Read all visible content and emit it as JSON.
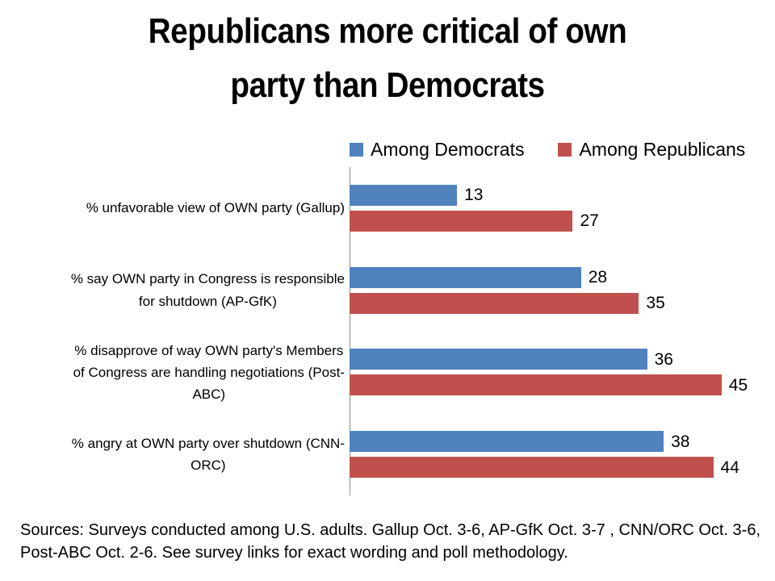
{
  "title": "Republicans more critical of own\nparty than Democrats",
  "legend": [
    {
      "label": "Among Democrats",
      "color": "#4F81BD"
    },
    {
      "label": "Among Republicans",
      "color": "#C0504D"
    }
  ],
  "chart_data": {
    "type": "bar",
    "orientation": "horizontal",
    "title": "Republicans more critical of own party than Democrats",
    "categories": [
      "% unfavorable view of OWN party (Gallup)",
      "% say OWN party in Congress is responsible\nfor shutdown (AP-GfK)",
      "% disapprove of way OWN party's Members\nof Congress are handling negotiations (Post-\nABC)",
      "% angry at OWN party over shutdown (CNN-\nORC)"
    ],
    "series": [
      {
        "name": "Among Democrats",
        "color": "#4F81BD",
        "values": [
          13,
          28,
          36,
          38
        ]
      },
      {
        "name": "Among Republicans",
        "color": "#C0504D",
        "values": [
          27,
          35,
          45,
          44
        ]
      }
    ],
    "xlim": [
      0,
      50
    ],
    "data_labels": true,
    "grid": false,
    "legend_position": "top"
  },
  "sources": "Sources: Surveys conducted among U.S. adults. Gallup Oct. 3-6, AP-GfK Oct. 3-7 , CNN/ORC Oct. 3-6,\nPost-ABC Oct. 2-6. See survey links for exact wording and poll methodology."
}
